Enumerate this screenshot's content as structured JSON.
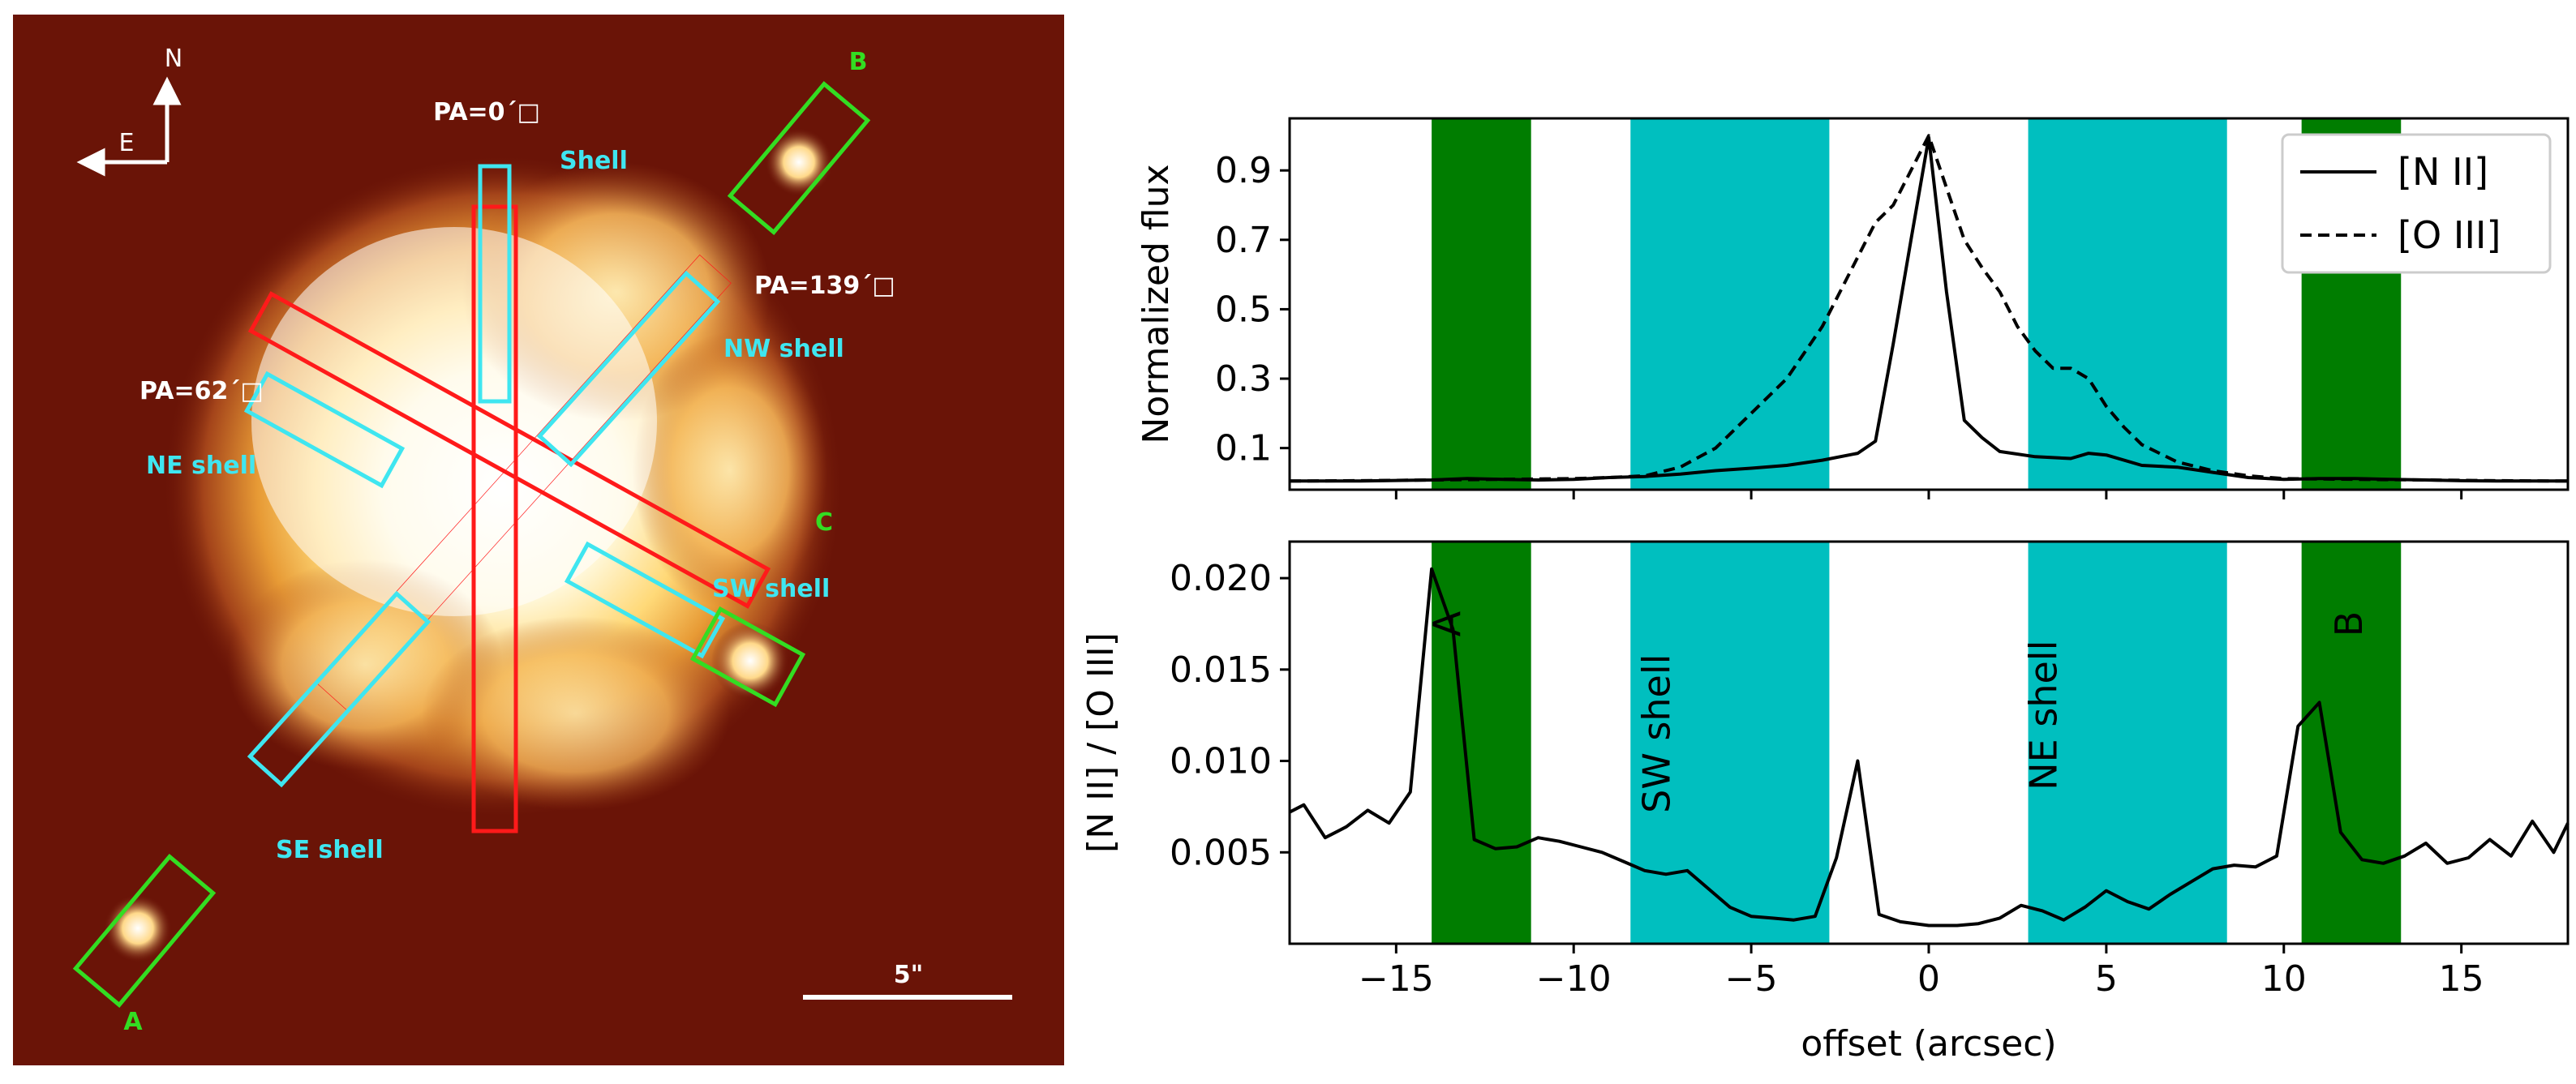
{
  "image_panel": {
    "compass_north": "N",
    "compass_east": "E",
    "slit_labels": [
      {
        "id": "pa0",
        "text": "PA=0´□"
      },
      {
        "id": "pa139",
        "text": "PA=139´□"
      },
      {
        "id": "pa62",
        "text": "PA=62´□"
      }
    ],
    "region_labels": [
      {
        "id": "shell",
        "text": "Shell"
      },
      {
        "id": "nw-shell",
        "text": "NW shell"
      },
      {
        "id": "ne-shell",
        "text": "NE shell"
      },
      {
        "id": "sw-shell",
        "text": "SW shell"
      },
      {
        "id": "se-shell",
        "text": "SE shell"
      }
    ],
    "knot_labels": [
      {
        "id": "A",
        "text": "A"
      },
      {
        "id": "B",
        "text": "B"
      },
      {
        "id": "C",
        "text": "C"
      }
    ],
    "scale_bar_label": "5\"",
    "colors": {
      "background": "#6a1407",
      "slit_red": "#ff1a1a",
      "region_cyan": "#3fe6f0",
      "knot_green": "#33dd22",
      "label_white": "#ffffff"
    }
  },
  "chart_data": [
    {
      "type": "line",
      "panel": "top",
      "ylabel": "Normalized flux",
      "xlim": [
        -18,
        18
      ],
      "ylim": [
        -0.02,
        1.05
      ],
      "yticks": [
        0.1,
        0.3,
        0.5,
        0.7,
        0.9
      ],
      "ytick_labels": [
        "0.1",
        "0.3",
        "0.5",
        "0.7",
        "0.9"
      ],
      "xticks": [
        -15,
        -10,
        -5,
        0,
        5,
        10,
        15
      ],
      "legend": [
        {
          "label": "[N II]",
          "style": "solid"
        },
        {
          "label": "[O III]",
          "style": "dashed"
        }
      ],
      "legend_position": "top-right",
      "series": [
        {
          "name": "[N II]",
          "x": [
            -18,
            -16,
            -14,
            -13,
            -12,
            -11,
            -10,
            -9,
            -8,
            -7,
            -6,
            -5,
            -4,
            -3,
            -2,
            -1.5,
            -1,
            -0.5,
            0,
            0.5,
            1,
            1.5,
            2,
            3,
            4,
            4.5,
            5,
            6,
            7,
            8,
            9,
            10,
            11,
            12,
            13,
            14,
            15,
            16,
            17,
            18
          ],
          "y": [
            0.005,
            0.005,
            0.008,
            0.012,
            0.01,
            0.008,
            0.01,
            0.015,
            0.018,
            0.025,
            0.035,
            0.042,
            0.05,
            0.065,
            0.085,
            0.12,
            0.4,
            0.7,
            0.995,
            0.55,
            0.18,
            0.13,
            0.09,
            0.075,
            0.07,
            0.085,
            0.08,
            0.05,
            0.045,
            0.03,
            0.015,
            0.01,
            0.012,
            0.012,
            0.01,
            0.008,
            0.006,
            0.005,
            0.005,
            0.005
          ]
        },
        {
          "name": "[O III]",
          "x": [
            -18,
            -16,
            -14,
            -12,
            -10,
            -9,
            -8,
            -7,
            -6,
            -5,
            -4,
            -3,
            -2.5,
            -2,
            -1.5,
            -1,
            -0.5,
            0,
            0.5,
            1,
            1.5,
            2,
            2.5,
            3,
            3.5,
            4,
            4.5,
            5,
            5.5,
            6,
            7,
            8,
            9,
            10,
            12,
            14,
            16,
            18
          ],
          "y": [
            0.005,
            0.006,
            0.008,
            0.01,
            0.012,
            0.015,
            0.02,
            0.045,
            0.1,
            0.2,
            0.3,
            0.45,
            0.55,
            0.65,
            0.75,
            0.8,
            0.9,
            1.0,
            0.85,
            0.7,
            0.62,
            0.55,
            0.45,
            0.38,
            0.33,
            0.33,
            0.3,
            0.22,
            0.16,
            0.11,
            0.06,
            0.035,
            0.02,
            0.012,
            0.01,
            0.008,
            0.006,
            0.005
          ]
        }
      ],
      "shaded_regions": [
        {
          "name": "A",
          "x0": -14.0,
          "x1": -11.2,
          "color": "#007d00"
        },
        {
          "name": "SW shell",
          "x0": -8.4,
          "x1": -2.8,
          "color": "#00bfbf"
        },
        {
          "name": "NE shell",
          "x0": 2.8,
          "x1": 8.4,
          "color": "#00bfbf"
        },
        {
          "name": "B",
          "x0": 10.5,
          "x1": 13.3,
          "color": "#007d00"
        }
      ]
    },
    {
      "type": "line",
      "panel": "bottom",
      "xlabel": "offset (arcsec)",
      "ylabel": "[N II] / [O III]",
      "xlim": [
        -18,
        18
      ],
      "ylim": [
        0.0,
        0.022
      ],
      "yticks": [
        0.005,
        0.01,
        0.015,
        0.02
      ],
      "ytick_labels": [
        "0.005",
        "0.010",
        "0.015",
        "0.020"
      ],
      "xticks": [
        -15,
        -10,
        -5,
        0,
        5,
        10,
        15
      ],
      "xtick_labels": [
        "−15",
        "−10",
        "−5",
        "0",
        "5",
        "10",
        "15"
      ],
      "series": [
        {
          "name": "[N II] / [O III]",
          "x": [
            -18,
            -17.6,
            -17,
            -16.4,
            -15.8,
            -15.2,
            -14.6,
            -14.0,
            -13.4,
            -12.8,
            -12.2,
            -11.6,
            -11.0,
            -10.4,
            -9.8,
            -9.2,
            -8.6,
            -8.0,
            -7.4,
            -6.8,
            -6.2,
            -5.6,
            -5.0,
            -4.4,
            -3.8,
            -3.2,
            -2.6,
            -2.0,
            -1.4,
            -0.8,
            0.0,
            0.8,
            1.4,
            2.0,
            2.6,
            3.2,
            3.8,
            4.4,
            5.0,
            5.6,
            6.2,
            6.8,
            7.4,
            8.0,
            8.6,
            9.2,
            9.8,
            10.4,
            11.0,
            11.6,
            12.2,
            12.8,
            13.4,
            14.0,
            14.6,
            15.2,
            15.8,
            16.4,
            17.0,
            17.6,
            18.0
          ],
          "y": [
            0.0072,
            0.0076,
            0.0058,
            0.0064,
            0.0073,
            0.0066,
            0.0083,
            0.0205,
            0.0172,
            0.0057,
            0.0052,
            0.0053,
            0.0058,
            0.0056,
            0.0053,
            0.005,
            0.0045,
            0.004,
            0.0038,
            0.004,
            0.003,
            0.002,
            0.0015,
            0.0014,
            0.0013,
            0.0015,
            0.0047,
            0.01,
            0.0016,
            0.0012,
            0.001,
            0.001,
            0.0011,
            0.0014,
            0.0021,
            0.0018,
            0.0013,
            0.002,
            0.0029,
            0.0023,
            0.0019,
            0.0027,
            0.0034,
            0.0041,
            0.0043,
            0.0042,
            0.0048,
            0.0119,
            0.0132,
            0.0061,
            0.0046,
            0.0044,
            0.0048,
            0.0055,
            0.0044,
            0.0047,
            0.0057,
            0.0048,
            0.0067,
            0.005,
            0.0066
          ]
        }
      ],
      "shaded_regions": [
        {
          "name": "A",
          "x0": -14.0,
          "x1": -11.2,
          "color": "#007d00"
        },
        {
          "name": "SW shell",
          "x0": -8.4,
          "x1": -2.8,
          "color": "#00bfbf"
        },
        {
          "name": "NE shell",
          "x0": 2.8,
          "x1": 8.4,
          "color": "#00bfbf"
        },
        {
          "name": "B",
          "x0": 10.5,
          "x1": 13.3,
          "color": "#007d00"
        }
      ],
      "annotations": [
        {
          "text": "A",
          "x": -13.2,
          "y": 0.0175
        },
        {
          "text": "SW shell",
          "x": -7.3,
          "y": 0.0115
        },
        {
          "text": "NE shell",
          "x": 3.6,
          "y": 0.0125
        },
        {
          "text": "B",
          "x": 12.2,
          "y": 0.0175
        }
      ]
    }
  ]
}
